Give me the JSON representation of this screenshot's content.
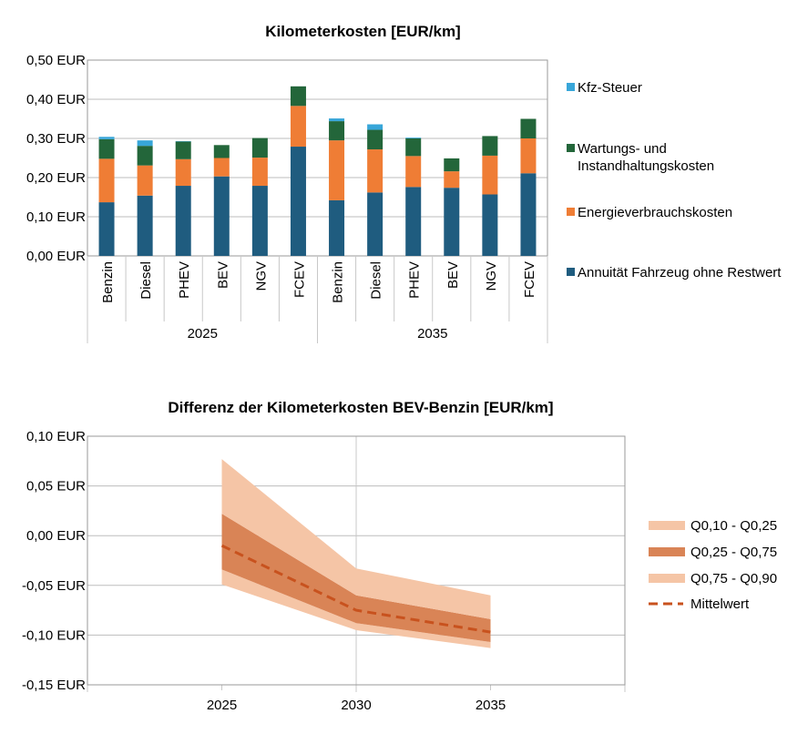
{
  "chart_data": [
    {
      "type": "bar",
      "stacked": true,
      "title": "Kilometerkosten [EUR/km]",
      "ylim": [
        0,
        0.5
      ],
      "yticks": [
        "0,00 EUR",
        "0,10 EUR",
        "0,20 EUR",
        "0,30 EUR",
        "0,40 EUR",
        "0,50 EUR"
      ],
      "groups": [
        "2025",
        "2035"
      ],
      "categories": [
        "Benzin",
        "Diesel",
        "PHEV",
        "BEV",
        "NGV",
        "FCEV",
        "Benzin",
        "Diesel",
        "PHEV",
        "BEV",
        "NGV",
        "FCEV"
      ],
      "series": [
        {
          "name": "Annuität Fahrzeug ohne Restwert",
          "color": "#1f5c7f",
          "values": [
            0.137,
            0.154,
            0.179,
            0.203,
            0.179,
            0.279,
            0.142,
            0.162,
            0.176,
            0.174,
            0.157,
            0.211
          ]
        },
        {
          "name": "Energieverbrauchskosten",
          "color": "#ef7d35",
          "values": [
            0.111,
            0.077,
            0.068,
            0.047,
            0.072,
            0.104,
            0.153,
            0.11,
            0.079,
            0.042,
            0.099,
            0.089
          ]
        },
        {
          "name": "Wartungs- und Instandhaltungskosten",
          "color": "#23663a",
          "values": [
            0.05,
            0.05,
            0.045,
            0.033,
            0.05,
            0.05,
            0.049,
            0.05,
            0.045,
            0.033,
            0.05,
            0.05
          ]
        },
        {
          "name": "Kfz-Steuer",
          "color": "#38a6d9",
          "values": [
            0.006,
            0.014,
            0.001,
            0.0,
            0.0,
            0.0,
            0.007,
            0.014,
            0.002,
            0.0,
            0.0,
            0.0
          ]
        }
      ],
      "legend_order": [
        "Kfz-Steuer",
        "Wartungs- und Instandhaltungskosten",
        "Energieverbrauchskosten",
        "Annuität Fahrzeug ohne Restwert"
      ],
      "legend_lines": [
        [
          "Kfz-Steuer"
        ],
        [
          "Wartungs- und",
          "Instandhaltungskosten"
        ],
        [
          "Energieverbrauchskosten"
        ],
        [
          "Annuität Fahrzeug ohne Restwert"
        ]
      ],
      "grid": true,
      "legend_position": "right"
    },
    {
      "type": "area",
      "title": "Differenz der Kilometerkosten BEV-Benzin  [EUR/km]",
      "x": [
        2025,
        2030,
        2035
      ],
      "xticks": [
        "2025",
        "2030",
        "2035"
      ],
      "ylim": [
        -0.15,
        0.1
      ],
      "yticks": [
        "-0,15 EUR",
        "-0,10 EUR",
        "-0,05 EUR",
        "0,00 EUR",
        "0,05 EUR",
        "0,10 EUR"
      ],
      "series": [
        {
          "name": "Q0,10 - Q0,25",
          "color": "#f5c5a6",
          "lower": [
            -0.049,
            -0.095,
            -0.113
          ],
          "upper": [
            -0.034,
            -0.088,
            -0.107
          ]
        },
        {
          "name": "Q0,25 - Q0,75",
          "color": "#d98456",
          "lower": [
            -0.034,
            -0.088,
            -0.107
          ],
          "upper": [
            0.022,
            -0.06,
            -0.084
          ]
        },
        {
          "name": "Q0,75 - Q0,90",
          "color": "#f5c5a6",
          "lower": [
            0.022,
            -0.06,
            -0.084
          ],
          "upper": [
            0.077,
            -0.033,
            -0.06
          ]
        },
        {
          "name": "Mittelwert",
          "color": "#c8521e",
          "style": "dashed",
          "values": [
            -0.01,
            -0.075,
            -0.097
          ]
        }
      ],
      "grid": true,
      "legend_position": "right"
    }
  ]
}
